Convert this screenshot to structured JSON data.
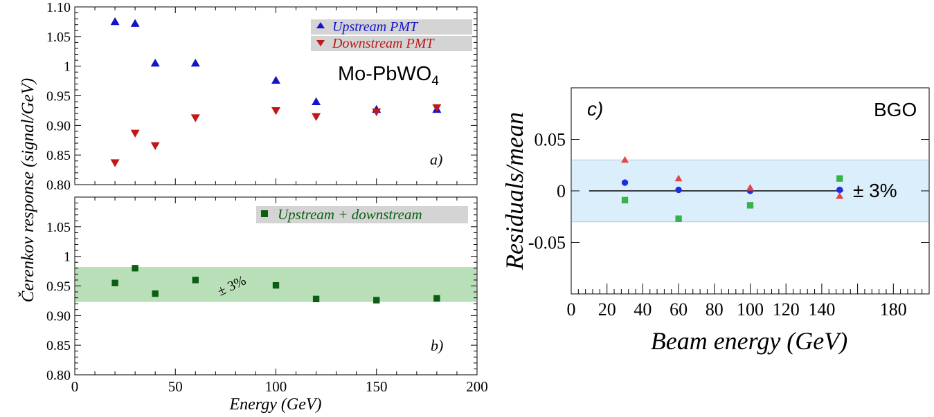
{
  "colors": {
    "upstream": "#1313c8",
    "downstream": "#c01818",
    "combined": "#0b5e12",
    "band_green": "#b9dfb8",
    "band_blue": "#dbeefb",
    "bgo_blue": "#1a2fe0",
    "bgo_red": "#e04848",
    "bgo_green": "#38b24a",
    "legend_bg": "#d4d4d4"
  },
  "chart_data": [
    {
      "id": "a",
      "type": "scatter",
      "panel_label": "a)",
      "material_label": "Mo-PbWO",
      "material_subscript": "4",
      "xlim": [
        0,
        200
      ],
      "ylim": [
        0.8,
        1.1
      ],
      "yticks": [
        "0.80",
        "0.85",
        "0.90",
        "0.95",
        "1",
        "1.05",
        "1.10"
      ],
      "ytick_values": [
        0.8,
        0.85,
        0.9,
        0.95,
        1.0,
        1.05,
        1.1
      ],
      "legend_position": "top-right",
      "series": [
        {
          "name": "Upstream PMT",
          "marker": "triangle-up",
          "color": "#1313c8",
          "x": [
            20,
            30,
            40,
            60,
            100,
            120,
            150,
            180
          ],
          "y": [
            1.075,
            1.072,
            1.005,
            1.005,
            0.976,
            0.94,
            0.927,
            0.927
          ]
        },
        {
          "name": "Downstream PMT",
          "marker": "triangle-down",
          "color": "#c01818",
          "x": [
            20,
            30,
            40,
            60,
            100,
            120,
            150,
            180
          ],
          "y": [
            0.837,
            0.887,
            0.866,
            0.913,
            0.925,
            0.915,
            0.923,
            0.93
          ]
        }
      ]
    },
    {
      "id": "b",
      "type": "scatter",
      "panel_label": "b)",
      "xlim": [
        0,
        200
      ],
      "ylim": [
        0.8,
        1.1
      ],
      "xticks": [
        "0",
        "50",
        "100",
        "150",
        "200"
      ],
      "xtick_values": [
        0,
        50,
        100,
        150,
        200
      ],
      "yticks": [
        "0.80",
        "0.85",
        "0.90",
        "0.95",
        "1",
        "1.05"
      ],
      "ytick_values": [
        0.8,
        0.85,
        0.9,
        0.95,
        1.0,
        1.05
      ],
      "xlabel": "Energy (GeV)",
      "ylabel": "Čerenkov response (signal/GeV)",
      "band": {
        "low": 0.923,
        "high": 0.982,
        "label": "± 3%"
      },
      "legend_position": "top-right",
      "series": [
        {
          "name": "Upstream + downstream",
          "marker": "square",
          "color": "#0b5e12",
          "x": [
            20,
            30,
            40,
            60,
            100,
            120,
            150,
            180
          ],
          "y": [
            0.955,
            0.98,
            0.937,
            0.96,
            0.951,
            0.928,
            0.926,
            0.929
          ]
        }
      ]
    },
    {
      "id": "c",
      "type": "scatter",
      "panel_label": "c)",
      "material_label": "BGO",
      "xlim": [
        0,
        200
      ],
      "ylim": [
        -0.1,
        0.1
      ],
      "xticks": [
        "0",
        "20",
        "40",
        "60",
        "80",
        "100",
        "120",
        "140",
        "180"
      ],
      "xtick_values": [
        0,
        20,
        40,
        60,
        80,
        100,
        120,
        140,
        180
      ],
      "yticks": [
        "0.05",
        "0",
        "-0.05"
      ],
      "ytick_values": [
        0.05,
        0,
        -0.05
      ],
      "xlabel": "Beam energy (GeV)",
      "ylabel": "Residuals/mean",
      "band": {
        "low": -0.03,
        "high": 0.03,
        "label": "± 3%"
      },
      "series": [
        {
          "name": "blue",
          "marker": "circle",
          "color": "#1a2fe0",
          "x": [
            30,
            60,
            100,
            150
          ],
          "y": [
            0.008,
            0.001,
            0.0,
            0.001
          ]
        },
        {
          "name": "red",
          "marker": "triangle-up",
          "color": "#e04848",
          "x": [
            30,
            60,
            100,
            150
          ],
          "y": [
            0.03,
            0.012,
            0.003,
            -0.005
          ]
        },
        {
          "name": "green",
          "marker": "square",
          "color": "#38b24a",
          "x": [
            30,
            60,
            100,
            150
          ],
          "y": [
            -0.009,
            -0.027,
            -0.014,
            0.012
          ]
        }
      ]
    }
  ]
}
